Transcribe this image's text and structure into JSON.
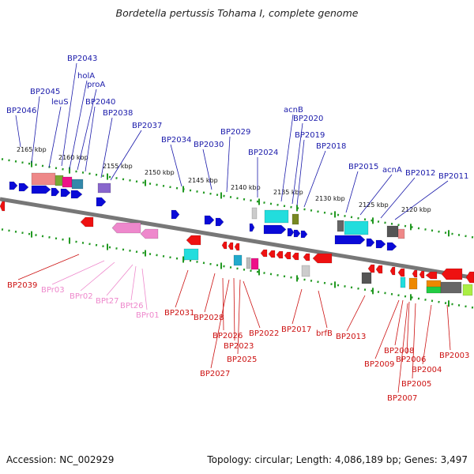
{
  "title": "Bordetella pertussis Tohama I, complete genome",
  "footer": {
    "accession": "Accession: NC_002929",
    "summary": "Topology: circular; Length: 4,086,189 bp; Genes: 3,497"
  },
  "colors": {
    "forward_gene": "#0a0ad8",
    "reverse_gene": "#ee1111",
    "pseudogene": "#ee88cc",
    "ruler": "#229922",
    "label_top": "#1a1aaa",
    "label_bottom": "#cc1111",
    "label_pseudo": "#ee88cc"
  },
  "kbp_ticks": [
    "2165 kbp",
    "2160 kbp",
    "2155 kbp",
    "2150 kbp",
    "2145 kbp",
    "2140 kbp",
    "2135 kbp",
    "2130 kbp",
    "2125 kbp",
    "2120 kbp"
  ],
  "top_labels": [
    "BP2046",
    "BP2045",
    "BP2043",
    "holA",
    "leuS",
    "proA",
    "BP2040",
    "BP2038",
    "BP2037",
    "BP2034",
    "BP2030",
    "BP2029",
    "BP2024",
    "acnB",
    "BP2020",
    "BP2019",
    "BP2018",
    "BP2015",
    "acnA",
    "BP2012",
    "BP2011"
  ],
  "bottom_labels": [
    "BP2039",
    "BPr03",
    "BPr02",
    "BPt27",
    "BPt26",
    "BPr01",
    "BP2031",
    "BP2028",
    "BP2026",
    "BP2023",
    "BP2025",
    "BP2027",
    "BP2022",
    "BP2017",
    "brfB",
    "BP2013",
    "BP2009",
    "BP2008",
    "BP2006",
    "BP2005",
    "BP2004",
    "BP2003",
    "BP2007"
  ]
}
